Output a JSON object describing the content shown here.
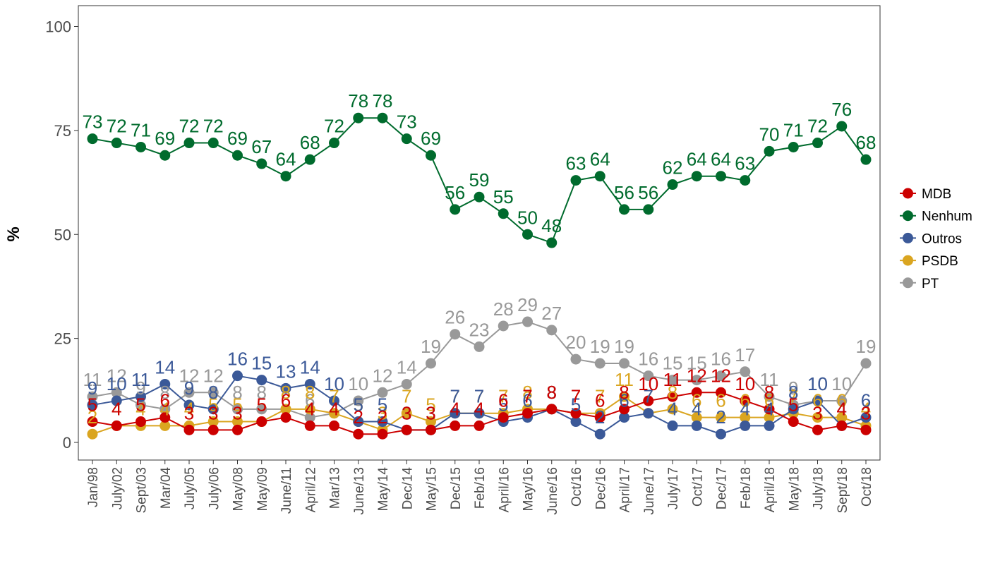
{
  "chart_data": {
    "type": "line",
    "title": "",
    "xlabel": "",
    "ylabel": "%",
    "ylim": [
      0,
      100
    ],
    "yticks": [
      0,
      25,
      50,
      75,
      100
    ],
    "grid": false,
    "legend_position": "right",
    "categories": [
      "Jan/98",
      "July/02",
      "Sept/03",
      "Mar/04",
      "July/05",
      "July/06",
      "May/08",
      "May/09",
      "June/11",
      "April/12",
      "Mar/13",
      "June/13",
      "May/14",
      "Dec/14",
      "May/15",
      "Dec/15",
      "Feb/16",
      "April/16",
      "May/16",
      "June/16",
      "Oct/16",
      "Dec/16",
      "April/17",
      "June/17",
      "July/17",
      "Oct/17",
      "Dec/17",
      "Feb/18",
      "April/18",
      "May/18",
      "July/18",
      "Sept/18",
      "Oct/18"
    ],
    "series": [
      {
        "name": "PT",
        "color": "#999999",
        "values": [
          11,
          12,
          9,
          8,
          12,
          12,
          8,
          8,
          8,
          6,
          7,
          10,
          12,
          14,
          19,
          26,
          23,
          28,
          29,
          27,
          20,
          19,
          19,
          16,
          15,
          15,
          16,
          17,
          11,
          9,
          10,
          10,
          19
        ]
      },
      {
        "name": "PSDB",
        "color": "#DAA520",
        "values": [
          2,
          4,
          4,
          4,
          4,
          5,
          5,
          5,
          8,
          8,
          7,
          5,
          3,
          7,
          5,
          7,
          7,
          7,
          8,
          8,
          7,
          7,
          11,
          7,
          8,
          6,
          6,
          6,
          6,
          7,
          6,
          6,
          4
        ]
      },
      {
        "name": "Outros",
        "color": "#3B5998",
        "values": [
          9,
          10,
          11,
          14,
          9,
          8,
          16,
          15,
          13,
          14,
          10,
          5,
          5,
          3,
          3,
          7,
          7,
          5,
          6,
          8,
          5,
          2,
          6,
          7,
          4,
          4,
          2,
          4,
          4,
          8,
          10,
          4,
          6
        ]
      },
      {
        "name": "MDB",
        "color": "#CC0000",
        "values": [
          5,
          4,
          5,
          6,
          3,
          3,
          3,
          5,
          6,
          4,
          4,
          2,
          2,
          3,
          3,
          4,
          4,
          6,
          7,
          8,
          7,
          6,
          8,
          10,
          11,
          12,
          12,
          10,
          8,
          5,
          3,
          4,
          3
        ]
      },
      {
        "name": "Nenhum",
        "color": "#006B2D",
        "values": [
          73,
          72,
          71,
          69,
          72,
          72,
          69,
          67,
          64,
          68,
          72,
          78,
          78,
          73,
          69,
          56,
          59,
          55,
          50,
          48,
          63,
          64,
          56,
          56,
          62,
          64,
          64,
          63,
          70,
          71,
          72,
          76,
          68
        ]
      }
    ]
  },
  "legend": [
    {
      "label": "MDB",
      "color": "#CC0000"
    },
    {
      "label": "Nenhum",
      "color": "#006B2D"
    },
    {
      "label": "Outros",
      "color": "#3B5998"
    },
    {
      "label": "PSDB",
      "color": "#DAA520"
    },
    {
      "label": "PT",
      "color": "#999999"
    }
  ]
}
